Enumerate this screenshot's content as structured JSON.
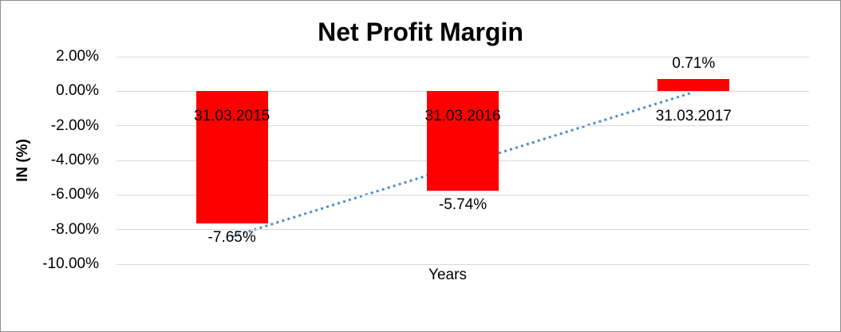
{
  "frame": {
    "background": "#ffffff",
    "border_color": "#8c8c8c"
  },
  "chart_data": {
    "type": "bar",
    "title": "Net Profit Margin",
    "xlabel": "Years",
    "ylabel": "IN (%)",
    "categories": [
      "31.03.2015",
      "31.03.2016",
      "31.03.2017"
    ],
    "series": [
      {
        "name": "Net Profit Margin",
        "values": [
          -7.65,
          -5.74,
          0.71
        ]
      }
    ],
    "data_labels": [
      "-7.65%",
      "-5.74%",
      "0.71%"
    ],
    "y_ticks": [
      {
        "label": "2.00%",
        "value": 2
      },
      {
        "label": "0.00%",
        "value": 0
      },
      {
        "label": "-2.00%",
        "value": -2
      },
      {
        "label": "-4.00%",
        "value": -4
      },
      {
        "label": "-6.00%",
        "value": -6
      },
      {
        "label": "-8.00%",
        "value": -8
      },
      {
        "label": "-10.00%",
        "value": -10
      }
    ],
    "ylim": [
      -10,
      2
    ],
    "grid": true,
    "legend": "none",
    "bar_color": "#FF0000",
    "gridline_color": "#D9D9D9",
    "text_color": "#000000",
    "trendline": {
      "style": "dotted",
      "color": "#4E8BCD",
      "points": [
        {
          "category_index": 0,
          "value": -8.41
        },
        {
          "category_index": 2,
          "value": -0.05
        }
      ]
    }
  }
}
